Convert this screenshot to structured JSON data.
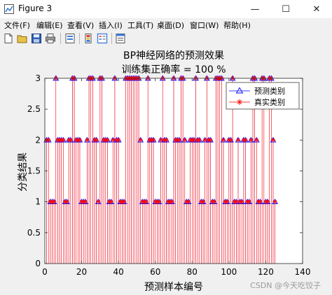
{
  "window": {
    "title": "Figure 3",
    "minimize": "—",
    "maximize": "☐",
    "close": "✕"
  },
  "menu": {
    "items": [
      "文件(F)",
      "编辑(E)",
      "查看(V)",
      "插入(I)",
      "工具(T)",
      "桌面(D)",
      "窗口(W)",
      "帮助(H)"
    ]
  },
  "toolbar": {
    "icons": [
      "new-figure-icon",
      "open-file-icon",
      "save-icon",
      "print-icon",
      "link-plot-icon",
      "insert-colorbar-icon",
      "insert-legend-icon",
      "property-inspector-icon"
    ]
  },
  "watermark": "CSDN @今天吃饺子",
  "colors": {
    "predicted": "#0000ff",
    "actual": "#ff0000",
    "axes_bg": "#ffffff",
    "figure_bg": "#f0f0f0"
  },
  "chart_data": {
    "type": "scatter",
    "title": "BP神经网络的预测效果",
    "subtitle": "训练集正确率 = 100 %",
    "xlabel": "预测样本编号",
    "ylabel": "分类结果",
    "xlim": [
      0,
      140
    ],
    "ylim": [
      0,
      3
    ],
    "xticks": [
      0,
      20,
      40,
      60,
      80,
      100,
      120,
      140
    ],
    "yticks": [
      0,
      0.5,
      1,
      1.5,
      2,
      2.5,
      3
    ],
    "grid": false,
    "legend": {
      "position": "top-right",
      "entries": [
        {
          "label": "预测类别",
          "marker": "triangle",
          "color": "#0000ff"
        },
        {
          "label": "真实类别",
          "marker": "asterisk",
          "color": "#ff0000"
        }
      ]
    },
    "series": [
      {
        "name": "预测类别",
        "marker": "triangle",
        "color": "#0000ff",
        "x": [
          1,
          2,
          3,
          4,
          5,
          6,
          7,
          8,
          9,
          10,
          11,
          12,
          13,
          14,
          15,
          16,
          17,
          18,
          19,
          20,
          21,
          22,
          23,
          24,
          25,
          26,
          27,
          28,
          29,
          30,
          31,
          32,
          33,
          34,
          35,
          36,
          37,
          38,
          39,
          40,
          41,
          42,
          43,
          44,
          45,
          46,
          47,
          48,
          49,
          50,
          51,
          52,
          53,
          54,
          55,
          56,
          57,
          58,
          59,
          60,
          61,
          62,
          63,
          64,
          65,
          66,
          67,
          68,
          69,
          70,
          71,
          72,
          73,
          74,
          75,
          76,
          77,
          78,
          79,
          80,
          81,
          82,
          83,
          84,
          85,
          86,
          87,
          88,
          89,
          90,
          91,
          92,
          93,
          94,
          95,
          96,
          97,
          98,
          99,
          100,
          101,
          102,
          103,
          104,
          105,
          106,
          107,
          108,
          109,
          110,
          111,
          112,
          113,
          114,
          115,
          116,
          117,
          118,
          119,
          120,
          121,
          122,
          123,
          124,
          125
        ],
        "y": [
          2,
          2,
          1,
          1,
          1,
          3,
          2,
          2,
          2,
          2,
          1,
          1,
          2,
          2,
          3,
          3,
          2,
          2,
          2,
          1,
          1,
          1,
          2,
          3,
          3,
          3,
          2,
          2,
          1,
          3,
          3,
          2,
          2,
          2,
          1,
          1,
          2,
          3,
          2,
          2,
          1,
          1,
          1,
          3,
          3,
          3,
          3,
          3,
          3,
          3,
          3,
          2,
          1,
          1,
          1,
          3,
          2,
          2,
          2,
          1,
          1,
          1,
          2,
          3,
          2,
          2,
          1,
          1,
          1,
          3,
          2,
          2,
          2,
          3,
          3,
          2,
          1,
          1,
          2,
          2,
          2,
          3,
          2,
          2,
          1,
          1,
          2,
          3,
          2,
          2,
          1,
          1,
          3,
          3,
          3,
          3,
          2,
          1,
          1,
          2,
          2,
          3,
          1,
          1,
          2,
          1,
          1,
          2,
          2,
          1,
          1,
          2,
          3,
          3,
          2,
          1,
          1,
          3,
          3,
          1,
          1,
          3,
          3,
          2,
          1
        ]
      },
      {
        "name": "真实类别",
        "marker": "asterisk",
        "color": "#ff0000",
        "x": [
          1,
          2,
          3,
          4,
          5,
          6,
          7,
          8,
          9,
          10,
          11,
          12,
          13,
          14,
          15,
          16,
          17,
          18,
          19,
          20,
          21,
          22,
          23,
          24,
          25,
          26,
          27,
          28,
          29,
          30,
          31,
          32,
          33,
          34,
          35,
          36,
          37,
          38,
          39,
          40,
          41,
          42,
          43,
          44,
          45,
          46,
          47,
          48,
          49,
          50,
          51,
          52,
          53,
          54,
          55,
          56,
          57,
          58,
          59,
          60,
          61,
          62,
          63,
          64,
          65,
          66,
          67,
          68,
          69,
          70,
          71,
          72,
          73,
          74,
          75,
          76,
          77,
          78,
          79,
          80,
          81,
          82,
          83,
          84,
          85,
          86,
          87,
          88,
          89,
          90,
          91,
          92,
          93,
          94,
          95,
          96,
          97,
          98,
          99,
          100,
          101,
          102,
          103,
          104,
          105,
          106,
          107,
          108,
          109,
          110,
          111,
          112,
          113,
          114,
          115,
          116,
          117,
          118,
          119,
          120,
          121,
          122,
          123,
          124,
          125
        ],
        "y": [
          2,
          2,
          1,
          1,
          1,
          3,
          2,
          2,
          2,
          2,
          1,
          1,
          2,
          2,
          3,
          3,
          2,
          2,
          2,
          1,
          1,
          1,
          2,
          3,
          3,
          3,
          2,
          2,
          1,
          3,
          3,
          2,
          2,
          2,
          1,
          1,
          2,
          3,
          2,
          2,
          1,
          1,
          1,
          3,
          3,
          3,
          3,
          3,
          3,
          3,
          3,
          2,
          1,
          1,
          1,
          3,
          2,
          2,
          2,
          1,
          1,
          1,
          2,
          3,
          2,
          2,
          1,
          1,
          1,
          3,
          2,
          2,
          2,
          3,
          3,
          2,
          1,
          1,
          2,
          2,
          2,
          3,
          2,
          2,
          1,
          1,
          2,
          3,
          2,
          2,
          1,
          1,
          3,
          3,
          3,
          3,
          2,
          1,
          1,
          2,
          2,
          3,
          1,
          1,
          2,
          1,
          1,
          2,
          2,
          1,
          1,
          2,
          3,
          3,
          2,
          1,
          1,
          3,
          3,
          1,
          1,
          3,
          3,
          2,
          1
        ]
      }
    ]
  }
}
